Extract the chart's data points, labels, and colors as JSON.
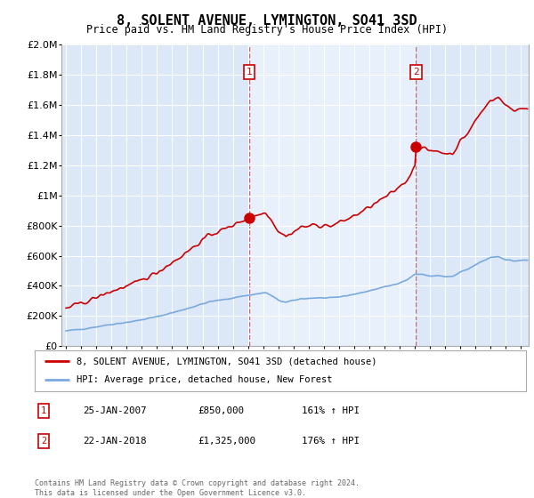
{
  "title": "8, SOLENT AVENUE, LYMINGTON, SO41 3SD",
  "subtitle": "Price paid vs. HM Land Registry's House Price Index (HPI)",
  "ytick_values": [
    0,
    200000,
    400000,
    600000,
    800000,
    1000000,
    1200000,
    1400000,
    1600000,
    1800000,
    2000000
  ],
  "ylim": [
    0,
    2000000
  ],
  "xlim_start": 1994.7,
  "xlim_end": 2025.5,
  "hpi_color": "#7aaadd",
  "price_color": "#cc0000",
  "sale1_x": 2007.07,
  "sale1_y": 850000,
  "sale1_label": "1",
  "sale2_x": 2018.07,
  "sale2_y": 1325000,
  "sale2_label": "2",
  "vline_color": "#cc0000",
  "vline_alpha": 0.6,
  "between_color": "#e8f0fc",
  "outside_color": "#dce8f8",
  "legend_entry1": "8, SOLENT AVENUE, LYMINGTON, SO41 3SD (detached house)",
  "legend_entry2": "HPI: Average price, detached house, New Forest",
  "table_rows": [
    {
      "num": "1",
      "date": "25-JAN-2007",
      "price": "£850,000",
      "hpi": "161% ↑ HPI"
    },
    {
      "num": "2",
      "date": "22-JAN-2018",
      "price": "£1,325,000",
      "hpi": "176% ↑ HPI"
    }
  ],
  "footer": "Contains HM Land Registry data © Crown copyright and database right 2024.\nThis data is licensed under the Open Government Licence v3.0.",
  "plot_bg_color": "#dce8f8"
}
